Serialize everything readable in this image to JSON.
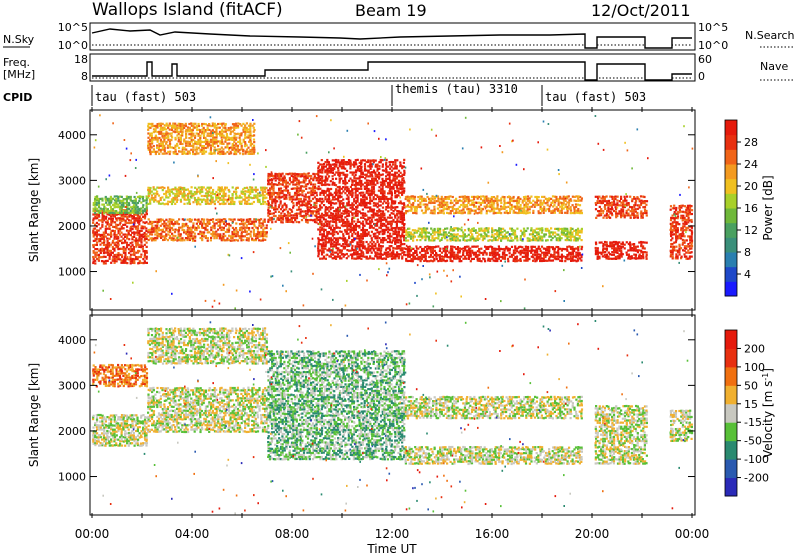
{
  "header": {
    "station": "Wallops Island (fitACF)",
    "beam": "Beam 19",
    "date": "12/Oct/2011"
  },
  "top_panels": {
    "nsky_label": "N.Sky",
    "nsky_ticks": [
      "10^5",
      "10^0"
    ],
    "nsearch_label": "N.Search",
    "nsearch_ticks": [
      "10^5",
      "10^0"
    ],
    "freq_label_1": "Freq.",
    "freq_label_2": "[MHz]",
    "freq_ticks": [
      "18",
      "8"
    ],
    "nave_label": "Nave",
    "nave_ticks": [
      "60",
      "0"
    ],
    "cpid_label": "CPID",
    "cpid_segments": [
      {
        "label": "tau (fast) 503",
        "start": 0,
        "end": 12
      },
      {
        "label": "themis (tau) 3310",
        "start": 12,
        "end": 18
      },
      {
        "label": "tau (fast) 503",
        "start": 18,
        "end": 24
      }
    ]
  },
  "chart_data": [
    {
      "type": "heatmap",
      "name": "power",
      "ylabel": "Slant Range [km]",
      "yticks": [
        1000,
        2000,
        3000,
        4000
      ],
      "ylim": [
        200,
        4500
      ],
      "xlim": [
        0,
        24
      ],
      "colorbar_label": "Power [dB]",
      "colorbar_ticks": [
        "28",
        "24",
        "20",
        "16",
        "12",
        "8",
        "4"
      ],
      "colors": [
        "#1a1aff",
        "#1f49c9",
        "#2a7fb0",
        "#3a8f7a",
        "#4aa060",
        "#6fb83a",
        "#a8d02a",
        "#f0c020",
        "#f39a20",
        "#f06418",
        "#e83010",
        "#e51a0c"
      ],
      "features": [
        {
          "t0": 0.0,
          "t1": 2.2,
          "r0": 1200,
          "r1": 2400,
          "level": 10
        },
        {
          "t0": 0.0,
          "t1": 2.2,
          "r0": 2300,
          "r1": 2700,
          "level": 5
        },
        {
          "t0": 2.2,
          "t1": 7.0,
          "r0": 1700,
          "r1": 2200,
          "level": 9
        },
        {
          "t0": 2.2,
          "t1": 7.0,
          "r0": 2500,
          "r1": 2900,
          "level": 7
        },
        {
          "t0": 2.2,
          "t1": 6.5,
          "r0": 3600,
          "r1": 4300,
          "level": 8
        },
        {
          "t0": 7.0,
          "t1": 9.0,
          "r0": 2100,
          "r1": 3200,
          "level": 10
        },
        {
          "t0": 9.0,
          "t1": 12.5,
          "r0": 1300,
          "r1": 3500,
          "level": 11
        },
        {
          "t0": 12.5,
          "t1": 19.6,
          "r0": 1250,
          "r1": 1600,
          "level": 11
        },
        {
          "t0": 12.5,
          "t1": 19.6,
          "r0": 2300,
          "r1": 2700,
          "level": 8
        },
        {
          "t0": 12.5,
          "t1": 19.6,
          "r0": 1700,
          "r1": 2000,
          "level": 6
        },
        {
          "t0": 20.1,
          "t1": 22.2,
          "r0": 1300,
          "r1": 1700,
          "level": 11
        },
        {
          "t0": 20.1,
          "t1": 22.2,
          "r0": 2200,
          "r1": 2700,
          "level": 10
        },
        {
          "t0": 23.1,
          "t1": 24.0,
          "r0": 1300,
          "r1": 2500,
          "level": 10
        }
      ]
    },
    {
      "type": "heatmap",
      "name": "velocity",
      "ylabel": "Slant Range [km]",
      "yticks": [
        1000,
        2000,
        3000,
        4000
      ],
      "ylim": [
        200,
        4500
      ],
      "xlim": [
        0,
        24
      ],
      "xticks": [
        "00:00",
        "04:00",
        "08:00",
        "12:00",
        "16:00",
        "20:00",
        "00:00"
      ],
      "xlabel": "Time UT",
      "colorbar_label": "Velocity [m s^-1]",
      "colorbar_ticks": [
        "200",
        "100",
        "50",
        "15",
        "-15",
        "-50",
        "-100",
        "-200"
      ],
      "colors": [
        "#2a2ab8",
        "#2a5ab0",
        "#2a8a70",
        "#58c038",
        "#c8c8c0",
        "#f0b030",
        "#f07010",
        "#e83010",
        "#e51a0c"
      ],
      "features": [
        {
          "t0": 0.0,
          "t1": 2.2,
          "r0": 1700,
          "r1": 2400,
          "level": 4
        },
        {
          "t0": 0.0,
          "t1": 2.2,
          "r0": 3000,
          "r1": 3500,
          "level": 6
        },
        {
          "t0": 2.2,
          "t1": 7.0,
          "r0": 2000,
          "r1": 3000,
          "level": 4
        },
        {
          "t0": 2.2,
          "t1": 7.0,
          "r0": 3500,
          "r1": 4300,
          "level": 4
        },
        {
          "t0": 7.0,
          "t1": 12.5,
          "r0": 1400,
          "r1": 3800,
          "level": 3
        },
        {
          "t0": 12.5,
          "t1": 19.6,
          "r0": 1300,
          "r1": 1700,
          "level": 4
        },
        {
          "t0": 12.5,
          "t1": 19.6,
          "r0": 2300,
          "r1": 2800,
          "level": 4
        },
        {
          "t0": 20.1,
          "t1": 22.2,
          "r0": 1300,
          "r1": 2600,
          "level": 4
        },
        {
          "t0": 23.1,
          "t1": 24.0,
          "r0": 1800,
          "r1": 2500,
          "level": 4
        }
      ]
    }
  ]
}
